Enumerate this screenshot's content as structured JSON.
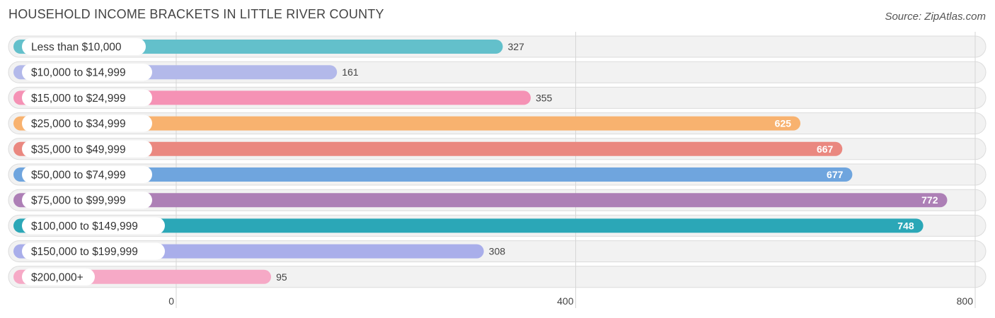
{
  "title": "HOUSEHOLD INCOME BRACKETS IN LITTLE RIVER COUNTY",
  "source": "Source: ZipAtlas.com",
  "chart_data": {
    "type": "bar",
    "orientation": "horizontal",
    "categories": [
      "Less than $10,000",
      "$10,000 to $14,999",
      "$15,000 to $24,999",
      "$25,000 to $34,999",
      "$35,000 to $49,999",
      "$50,000 to $74,999",
      "$75,000 to $99,999",
      "$100,000 to $149,999",
      "$150,000 to $199,999",
      "$200,000+"
    ],
    "values": [
      327,
      161,
      355,
      625,
      667,
      677,
      772,
      748,
      308,
      95
    ],
    "value_labels": [
      "327",
      "161",
      "355",
      "625",
      "667",
      "677",
      "772",
      "748",
      "308",
      "95"
    ],
    "colors": [
      "#63c0cb",
      "#b3b9ea",
      "#f592b5",
      "#f8b26f",
      "#ea8880",
      "#6fa5de",
      "#ad7fb6",
      "#2ba7b7",
      "#a9aeea",
      "#f6a9c6"
    ],
    "xlim": [
      0,
      800
    ],
    "xticks": [
      0,
      400,
      800
    ],
    "xtick_labels": [
      "0",
      "400",
      "800"
    ],
    "grid": true,
    "title": "HOUSEHOLD INCOME BRACKETS IN LITTLE RIVER COUNTY",
    "xlabel": "",
    "ylabel": ""
  }
}
